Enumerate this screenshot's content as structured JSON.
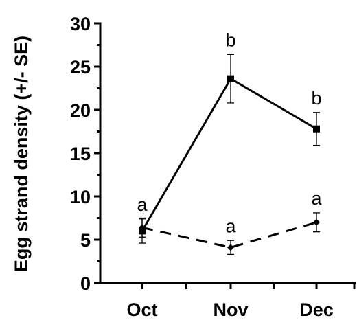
{
  "chart_data": {
    "type": "line",
    "title": "",
    "xlabel": "",
    "ylabel": "Egg strand density (+/- SE)",
    "categories": [
      "Oct",
      "Nov",
      "Dec"
    ],
    "ylim": [
      0,
      30
    ],
    "yticks": [
      "0",
      "5",
      "10",
      "15",
      "20",
      "25",
      "30"
    ],
    "grid": false,
    "legend": "none",
    "series": [
      {
        "style": "solid",
        "marker": "square",
        "color": "#000000",
        "values": [
          6.0,
          23.6,
          17.8
        ],
        "se": [
          1.4,
          2.8,
          1.9
        ],
        "labels": [
          "a",
          "b",
          "b"
        ]
      },
      {
        "style": "dashed",
        "marker": "diamond",
        "color": "#000000",
        "values": [
          6.4,
          4.1,
          7.0
        ],
        "se": [
          1.1,
          0.8,
          1.1
        ],
        "labels": [
          "",
          "a",
          "a"
        ]
      }
    ]
  }
}
